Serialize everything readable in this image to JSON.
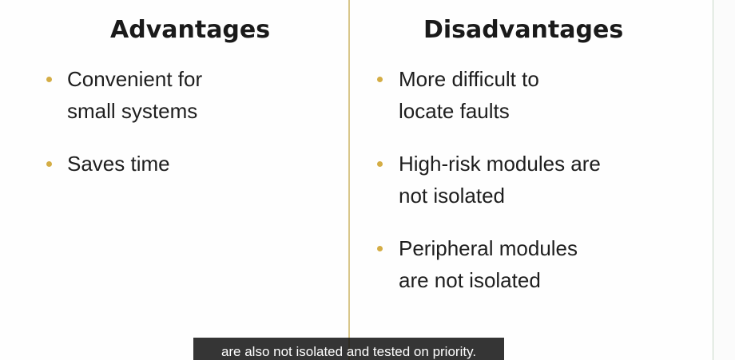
{
  "slide": {
    "left_column": {
      "title": "Advantages",
      "items": [
        "Convenient for\nsmall systems",
        "Saves time"
      ]
    },
    "right_column": {
      "title": "Disadvantages",
      "items": [
        "More difficult to\nlocate faults",
        "High-risk modules are\nnot isolated",
        "Peripheral modules\nare not isolated"
      ]
    }
  },
  "caption": {
    "text": "are also not isolated and tested on priority."
  },
  "colors": {
    "bullet": "#d4ad45",
    "divider": "#d8c68a",
    "caption_bg": "#141414"
  }
}
